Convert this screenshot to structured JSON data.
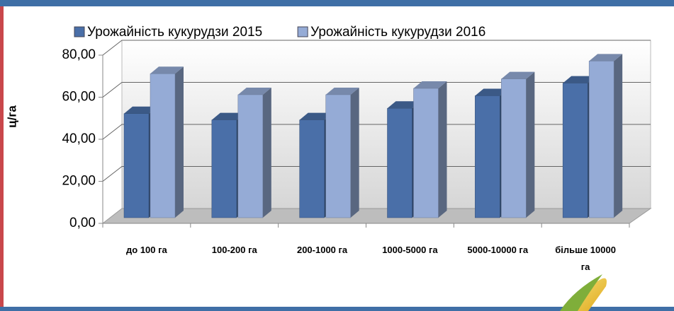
{
  "chart_data": {
    "type": "bar3d",
    "y_label": "ц/га",
    "categories": [
      "до 100 га",
      "100-200 га",
      "200-1000 га",
      "1000-5000 га",
      "5000-10000 га",
      "більше 10000 га"
    ],
    "series": [
      {
        "name": "Урожайність кукурудзи 2015",
        "color": "#4a6fa8",
        "values": [
          49.5,
          46.5,
          46.5,
          52,
          58,
          64
        ]
      },
      {
        "name": "Урожайність кукурудзи 2016",
        "color": "#95abd6",
        "values": [
          68.5,
          58.5,
          58.5,
          61.5,
          66,
          74.5
        ]
      }
    ],
    "ylim": [
      0,
      80
    ],
    "yticks": [
      {
        "value": 0,
        "label": "0,00"
      },
      {
        "value": 20,
        "label": "20,00"
      },
      {
        "value": 40,
        "label": "40,00"
      },
      {
        "value": 60,
        "label": "60,00"
      },
      {
        "value": 80,
        "label": "80,00"
      }
    ],
    "grid": true,
    "legend": "top"
  }
}
